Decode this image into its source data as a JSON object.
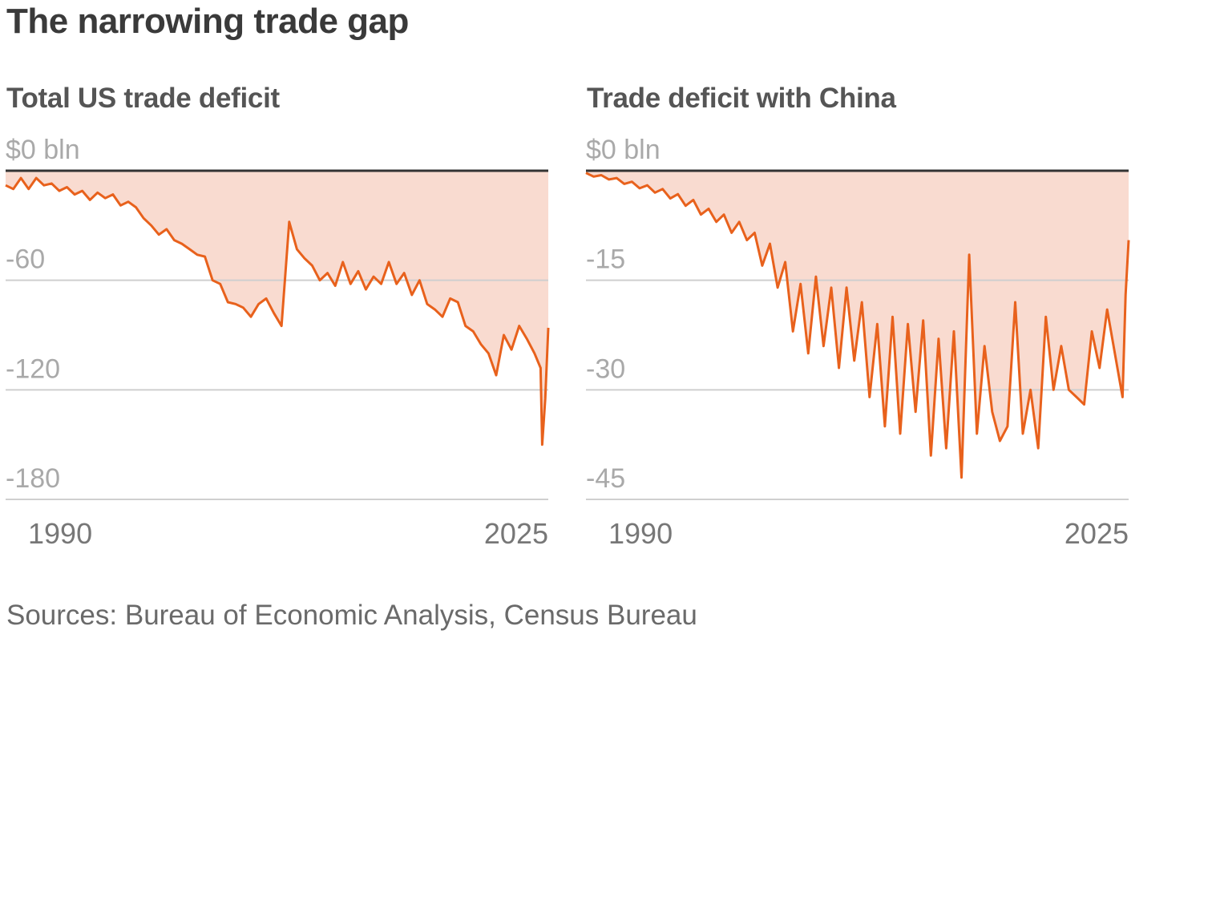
{
  "title": "The narrowing trade gap",
  "source": "Sources: Bureau of Economic Analysis, Census Bureau",
  "colors": {
    "line": "#e8611c",
    "fill": "#f9dbd0",
    "zero_line": "#333333",
    "grid": "#cfcfcf"
  },
  "chart_data": [
    {
      "type": "area",
      "title": "Total US trade deficit",
      "unit_label": "$0 bln",
      "ylim": [
        -180,
        0
      ],
      "yticks": [
        {
          "value": 0,
          "label": "$0 bln"
        },
        {
          "value": -60,
          "label": "-60"
        },
        {
          "value": -120,
          "label": "-120"
        },
        {
          "value": -180,
          "label": "-180"
        }
      ],
      "xlim": [
        1990,
        2025.4
      ],
      "xticks": [
        1990,
        2025
      ],
      "x": [
        1990.0,
        1990.5,
        1991.0,
        1991.5,
        1992.0,
        1992.5,
        1993.0,
        1993.5,
        1994.0,
        1994.5,
        1995.0,
        1995.5,
        1996.0,
        1996.5,
        1997.0,
        1997.5,
        1998.0,
        1998.5,
        1999.0,
        1999.5,
        2000.0,
        2000.5,
        2001.0,
        2001.5,
        2002.0,
        2002.5,
        2003.0,
        2003.5,
        2004.0,
        2004.5,
        2005.0,
        2005.5,
        2006.0,
        2006.5,
        2007.0,
        2007.5,
        2008.0,
        2008.5,
        2009.0,
        2009.5,
        2010.0,
        2010.5,
        2011.0,
        2011.5,
        2012.0,
        2012.5,
        2013.0,
        2013.5,
        2014.0,
        2014.5,
        2015.0,
        2015.5,
        2016.0,
        2016.5,
        2017.0,
        2017.5,
        2018.0,
        2018.5,
        2019.0,
        2019.5,
        2020.0,
        2020.5,
        2021.0,
        2021.5,
        2022.0,
        2022.5,
        2023.0,
        2023.5,
        2024.0,
        2024.5,
        2024.9,
        2025.0,
        2025.2,
        2025.4
      ],
      "values": [
        -8,
        -10,
        -4,
        -10,
        -4,
        -8,
        -7,
        -11,
        -9,
        -13,
        -11,
        -16,
        -12,
        -15,
        -13,
        -19,
        -17,
        -20,
        -26,
        -30,
        -35,
        -32,
        -38,
        -40,
        -43,
        -46,
        -47,
        -60,
        -62,
        -72,
        -73,
        -75,
        -80,
        -73,
        -70,
        -78,
        -85,
        -28,
        -43,
        -48,
        -52,
        -60,
        -56,
        -63,
        -50,
        -62,
        -55,
        -65,
        -58,
        -62,
        -50,
        -62,
        -56,
        -68,
        -60,
        -73,
        -76,
        -80,
        -70,
        -72,
        -85,
        -88,
        -95,
        -100,
        -112,
        -90,
        -98,
        -85,
        -92,
        -100,
        -108,
        -150,
        -125,
        -86
      ]
    },
    {
      "type": "area",
      "title": "Trade deficit with China",
      "unit_label": "$0 bln",
      "ylim": [
        -45,
        0
      ],
      "yticks": [
        {
          "value": 0,
          "label": "$0 bln"
        },
        {
          "value": -15,
          "label": "-15"
        },
        {
          "value": -30,
          "label": "-30"
        },
        {
          "value": -45,
          "label": "-45"
        }
      ],
      "xlim": [
        1990,
        2025.4
      ],
      "xticks": [
        1990,
        2025
      ],
      "x": [
        1990.0,
        1990.5,
        1991.0,
        1991.5,
        1992.0,
        1992.5,
        1993.0,
        1993.5,
        1994.0,
        1994.5,
        1995.0,
        1995.5,
        1996.0,
        1996.5,
        1997.0,
        1997.5,
        1998.0,
        1998.5,
        1999.0,
        1999.5,
        2000.0,
        2000.5,
        2001.0,
        2001.5,
        2002.0,
        2002.5,
        2003.0,
        2003.5,
        2004.0,
        2004.5,
        2005.0,
        2005.5,
        2006.0,
        2006.5,
        2007.0,
        2007.5,
        2008.0,
        2008.5,
        2009.0,
        2009.5,
        2010.0,
        2010.5,
        2011.0,
        2011.5,
        2012.0,
        2012.5,
        2013.0,
        2013.5,
        2014.0,
        2014.5,
        2015.0,
        2015.5,
        2016.0,
        2016.5,
        2017.0,
        2017.5,
        2018.0,
        2018.5,
        2019.0,
        2019.5,
        2020.0,
        2020.5,
        2021.0,
        2021.5,
        2022.0,
        2022.5,
        2023.0,
        2023.5,
        2024.0,
        2024.5,
        2025.0,
        2025.2,
        2025.4
      ],
      "values": [
        -0.3,
        -0.8,
        -0.6,
        -1.2,
        -1.0,
        -1.8,
        -1.5,
        -2.4,
        -2.0,
        -3.0,
        -2.5,
        -3.8,
        -3.2,
        -4.8,
        -4.0,
        -6.0,
        -5.2,
        -7.0,
        -6.0,
        -8.5,
        -7.0,
        -9.5,
        -8.5,
        -13.0,
        -10.0,
        -16.0,
        -12.5,
        -22.0,
        -15.5,
        -25.0,
        -14.5,
        -24.0,
        -16.0,
        -27.0,
        -16.0,
        -26.0,
        -18.0,
        -31.0,
        -21.0,
        -35.0,
        -20.0,
        -36.0,
        -21.0,
        -33.0,
        -20.5,
        -39.0,
        -23.0,
        -38.0,
        -22.0,
        -42.0,
        -11.5,
        -36.0,
        -24.0,
        -33.0,
        -37.0,
        -35.0,
        -18.0,
        -36.0,
        -30.0,
        -38.0,
        -20.0,
        -30.0,
        -24.0,
        -30.0,
        -31.0,
        -32.0,
        -22.0,
        -27.0,
        -19.0,
        -25.0,
        -31.0,
        -17.0,
        -9.5
      ]
    }
  ]
}
